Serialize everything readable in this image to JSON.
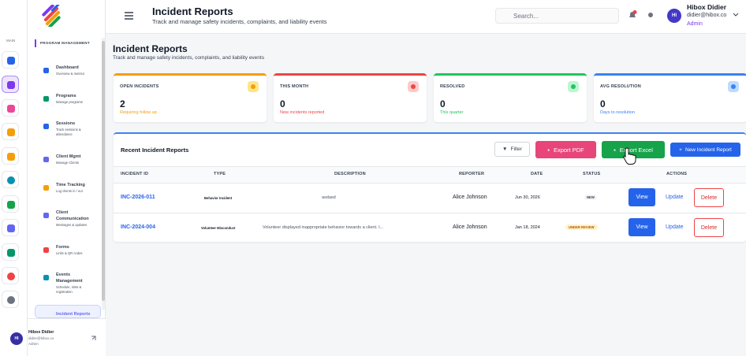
{
  "rail_label": "MAIN",
  "sidebar": {
    "section_label": "PROGRAM MANAGEMENT",
    "menu": [
      {
        "title": "Dashboard",
        "subtitle": "Overview & metrics"
      },
      {
        "title": "Programs",
        "subtitle": "Manage programs"
      },
      {
        "title": "Sessions",
        "subtitle": "Track sessions & attendance"
      },
      {
        "title": "Client Mgmt",
        "subtitle": "Manage Clients"
      },
      {
        "title": "Time Tracking",
        "subtitle": "Log clients in / out"
      },
      {
        "title": "Client Communication",
        "subtitle": "Messages & updates"
      },
      {
        "title": "Forms",
        "subtitle": "Links & QR codes"
      },
      {
        "title": "Events Management",
        "subtitle": "Schedule, slots & registration"
      },
      {
        "title": "Incident Reports",
        "subtitle": ""
      }
    ]
  },
  "user": {
    "initials": "HI",
    "name": "Hibox Didier",
    "email": "didier@hibox.co",
    "role": "Admin"
  },
  "header": {
    "title": "Incident Reports",
    "subtitle": "Track and manage safety incidents, complaints, and liability events",
    "search_placeholder": "Search..."
  },
  "page": {
    "title": "Incident Reports",
    "subtitle": "Track and manage safety incidents, complaints, and liability events"
  },
  "cards": [
    {
      "label": "OPEN INCIDENTS",
      "value": "2",
      "note": "Requiring follow up"
    },
    {
      "label": "THIS MONTH",
      "value": "0",
      "note": "New incidents reported"
    },
    {
      "label": "RESOLVED",
      "value": "0",
      "note": "This quarter"
    },
    {
      "label": "AVG RESOLUTION",
      "value": "0",
      "note": "Days to resolution"
    }
  ],
  "table": {
    "title": "Recent Incident Reports",
    "buttons": {
      "filter": "Filter",
      "export_pdf": "Export PDF",
      "export_excel": "Export Excel",
      "new": "New Incident Report"
    },
    "columns": [
      "INCIDENT ID",
      "TYPE",
      "DESCRIPTION",
      "REPORTER",
      "DATE",
      "STATUS",
      "ACTIONS"
    ],
    "actions": [
      "View",
      "Update",
      "Delete"
    ],
    "rows": [
      {
        "id": "INC-2026-011",
        "type": "Behavior Incident",
        "description": "asdasd",
        "reporter": "Alice Johnson",
        "date": "Jun 30, 2026",
        "status": "NEW"
      },
      {
        "id": "INC-2024-004",
        "type": "Volunteer Misconduct",
        "description": "Volunteer displayed inappropriate behavior towards a client. I...",
        "reporter": "Alice Johnson",
        "date": "Jan 18, 2024",
        "status": "UNDER REVIEW"
      }
    ]
  }
}
